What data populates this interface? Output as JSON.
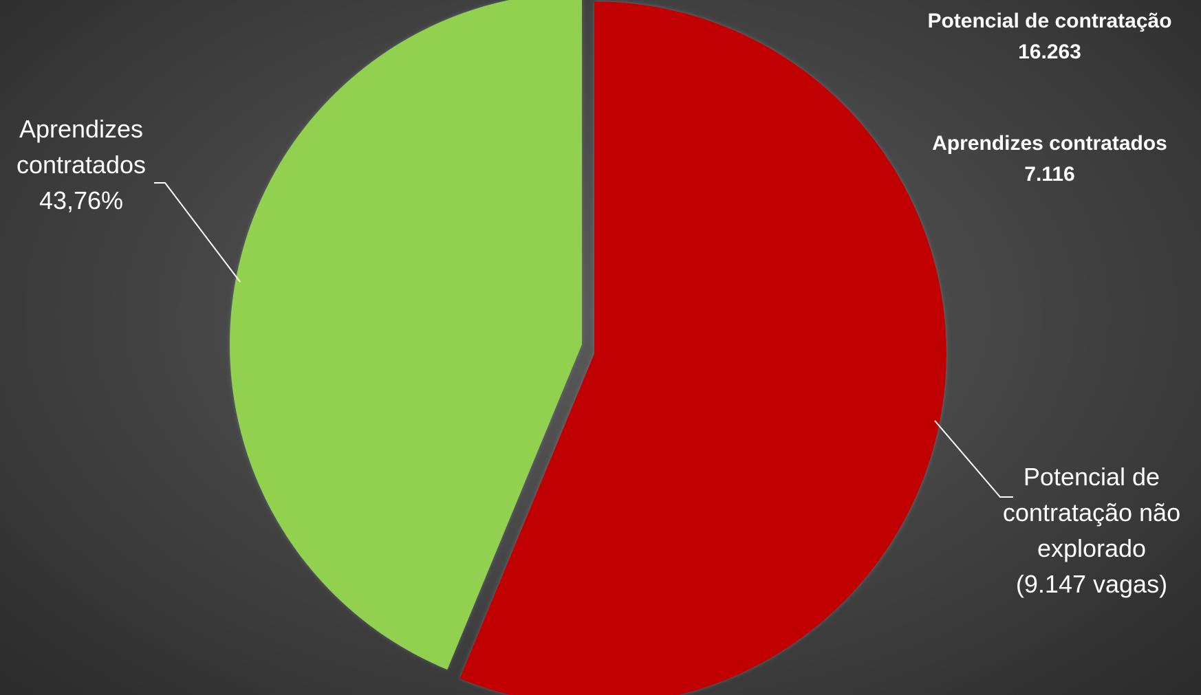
{
  "chart_data": {
    "type": "pie",
    "slices": [
      {
        "label_lines": [
          "Potencial de",
          "contratação não",
          "explorado",
          "(9.147 vagas)"
        ],
        "value": 9147,
        "color": "#c00000"
      },
      {
        "label_lines": [
          "Aprendizes",
          "contratados",
          "43,76%"
        ],
        "value": 7116,
        "color": "#92d050"
      }
    ],
    "legend": "none"
  },
  "summary": {
    "potencial_title": "Potencial de contratação",
    "potencial_value": "16.263",
    "contratados_title": "Aprendizes contratados",
    "contratados_value": "7.116"
  },
  "colors": {
    "background": "#474747",
    "label_text": "#ffffff",
    "leader_line": "#ffffff"
  }
}
